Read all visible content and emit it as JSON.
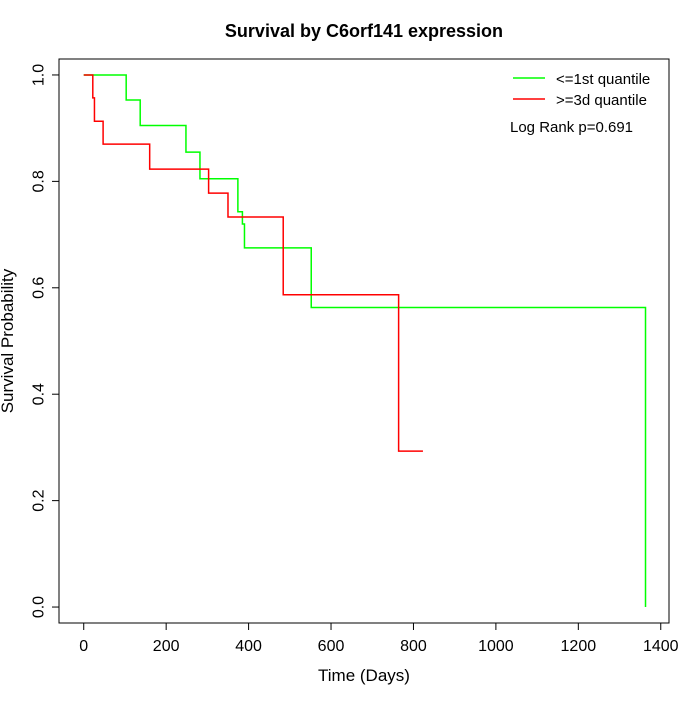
{
  "chart_data": {
    "type": "line",
    "title": "Survival by C6orf141 expression",
    "xlabel": "Time (Days)",
    "ylabel": "Survival Probability",
    "xlim": [
      -60,
      1420
    ],
    "ylim": [
      -0.03,
      1.03
    ],
    "xticks": [
      0,
      200,
      400,
      600,
      800,
      1000,
      1200,
      1400
    ],
    "yticks": [
      0.0,
      0.2,
      0.4,
      0.6,
      0.8,
      1.0
    ],
    "xtick_labels": [
      "0",
      "200",
      "400",
      "600",
      "800",
      "1000",
      "1200",
      "1400"
    ],
    "ytick_labels": [
      "0.0",
      "0.2",
      "0.4",
      "0.6",
      "0.8",
      "1.0"
    ],
    "grid": false,
    "legend_position": "top-right",
    "annotation": "Log Rank p=0.691",
    "series": [
      {
        "name": "<=1st quantile",
        "color": "#00ff00",
        "step": true,
        "x": [
          0,
          103,
          137,
          248,
          282,
          374,
          385,
          390,
          552,
          1363,
          1363
        ],
        "y": [
          1.0,
          0.953,
          0.905,
          0.855,
          0.805,
          0.743,
          0.72,
          0.675,
          0.563,
          0.563,
          0.0
        ]
      },
      {
        "name": ">=3d quantile",
        "color": "#ff0000",
        "step": true,
        "x": [
          0,
          22,
          26,
          47,
          160,
          303,
          350,
          484,
          764,
          823
        ],
        "y": [
          1.0,
          0.957,
          0.913,
          0.87,
          0.823,
          0.778,
          0.733,
          0.587,
          0.293,
          0.293
        ]
      }
    ]
  }
}
